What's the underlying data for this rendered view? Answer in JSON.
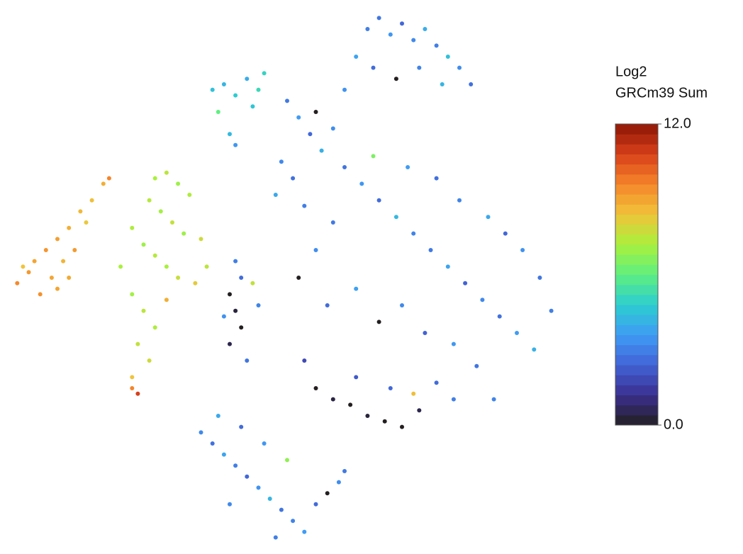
{
  "chart_data": {
    "type": "scatter",
    "xlim": [
      0,
      100
    ],
    "ylim": [
      0,
      100
    ],
    "x": [
      3,
      5,
      6,
      8,
      10,
      12,
      14,
      16,
      18,
      19,
      7,
      9,
      11,
      13,
      4,
      15,
      10,
      12,
      27,
      29,
      31,
      33,
      26,
      28,
      30,
      32,
      35,
      23,
      25,
      27,
      29,
      31,
      34,
      23,
      25,
      27,
      24,
      26,
      23,
      23,
      24,
      36,
      21,
      29,
      37,
      39,
      41,
      43,
      45,
      38,
      40,
      41,
      46,
      44,
      64,
      66,
      68,
      70,
      72,
      74,
      76,
      78,
      80,
      82,
      62,
      65,
      69,
      73,
      77,
      60,
      50,
      52,
      54,
      56,
      49,
      51,
      48,
      53,
      55,
      58,
      60,
      63,
      66,
      69,
      72,
      75,
      78,
      81,
      84,
      87,
      90,
      93,
      96,
      94,
      91,
      88,
      85,
      80,
      76,
      71,
      65,
      58,
      55,
      52,
      57,
      62,
      66,
      70,
      74,
      79,
      83,
      86,
      55,
      58,
      61,
      64,
      67,
      70,
      73,
      62,
      68,
      72,
      53,
      76,
      79,
      35,
      37,
      39,
      41,
      43,
      45,
      47,
      49,
      51,
      53,
      55,
      57,
      59,
      60,
      38,
      42,
      46,
      50,
      48,
      40,
      41,
      42,
      40,
      41,
      42,
      40,
      43,
      44,
      39,
      45
    ],
    "y": [
      49,
      51,
      53,
      55,
      57,
      59,
      62,
      64,
      67,
      68,
      47,
      50,
      53,
      55,
      52,
      60,
      48,
      50,
      68,
      69,
      67,
      65,
      64,
      62,
      60,
      58,
      57,
      59,
      56,
      54,
      52,
      50,
      49,
      47,
      44,
      41,
      38,
      35,
      32,
      30,
      29,
      52,
      52,
      46,
      84,
      85,
      83,
      86,
      84,
      80,
      76,
      74,
      87,
      81,
      95,
      97,
      94,
      96,
      93,
      95,
      92,
      90,
      88,
      85,
      90,
      88,
      86,
      88,
      85,
      84,
      82,
      79,
      76,
      73,
      71,
      68,
      65,
      63,
      80,
      77,
      70,
      67,
      64,
      61,
      58,
      55,
      52,
      49,
      46,
      43,
      40,
      37,
      44,
      50,
      55,
      58,
      61,
      64,
      68,
      70,
      72,
      60,
      55,
      50,
      45,
      48,
      42,
      45,
      40,
      38,
      34,
      28,
      30,
      28,
      27,
      25,
      24,
      23,
      26,
      32,
      30,
      29,
      35,
      31,
      28,
      22,
      20,
      18,
      16,
      14,
      12,
      10,
      8,
      6,
      4,
      9,
      11,
      13,
      15,
      25,
      23,
      20,
      17,
      3,
      9,
      53,
      50,
      47,
      44,
      41,
      38,
      35,
      49,
      43,
      45
    ],
    "values": [
      9.5,
      9.2,
      9,
      9.3,
      9.1,
      8.8,
      8.6,
      8.5,
      8.8,
      9.6,
      9.4,
      9,
      8.7,
      9.2,
      8.4,
      8.3,
      9,
      8.9,
      7.2,
      7.5,
      7,
      7.3,
      7.4,
      7.1,
      7.6,
      7,
      7.8,
      7.3,
      7,
      7.4,
      7.2,
      7.7,
      8.2,
      7.1,
      7.5,
      7.3,
      7.6,
      7.8,
      8.4,
      9.6,
      10.8,
      7.5,
      7.2,
      8.8,
      4.5,
      4.2,
      4.8,
      4,
      5.2,
      6,
      4.3,
      3.5,
      5,
      4.6,
      3,
      2.8,
      3.5,
      2.5,
      3.2,
      4,
      3,
      4.5,
      3.3,
      2.7,
      3.8,
      2.6,
      0,
      3.1,
      4.2,
      3.4,
      2.9,
      3.6,
      2.5,
      4.1,
      3.2,
      2.7,
      3.9,
      3,
      0,
      3.3,
      2.8,
      3.5,
      2.6,
      4.3,
      3.1,
      2.9,
      3.8,
      2.4,
      3.2,
      2.7,
      3.6,
      4.1,
      3,
      2.8,
      3.4,
      2.5,
      3.9,
      3.1,
      2.7,
      3.6,
      6.5,
      2.9,
      3.3,
      0,
      2.6,
      3.7,
      0,
      3.2,
      2.4,
      3.5,
      2.8,
      3.1,
      0,
      0.4,
      0,
      0.3,
      0,
      0,
      0.5,
      2.2,
      2.5,
      8.5,
      1.8,
      2.6,
      3,
      3.2,
      2.7,
      3.8,
      3,
      2.5,
      3.4,
      4.2,
      2.8,
      3.1,
      3.6,
      2.6,
      0,
      3.3,
      2.9,
      3.9,
      2.6,
      3.5,
      6.8,
      3,
      3.2,
      3,
      2.6,
      0,
      0.3,
      0,
      0.5,
      2.8,
      7.6,
      3.4,
      3.1
    ],
    "colormap": [
      "#231f20",
      "#3b2f8f",
      "#4262d6",
      "#3f9cf5",
      "#2ccdd0",
      "#5fef80",
      "#a9f03c",
      "#f0c43a",
      "#f5852a",
      "#d8401a",
      "#8c1606"
    ],
    "clim": [
      0,
      12
    ],
    "colorbar_title": [
      "Log2",
      "GRCm39 Sum"
    ],
    "colorbar_ticks": [
      {
        "value": 0,
        "label": "0.0"
      },
      {
        "value": 12,
        "label": "12.0"
      }
    ]
  }
}
